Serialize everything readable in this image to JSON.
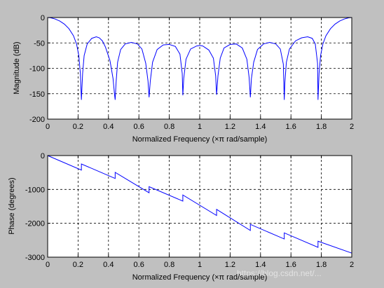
{
  "colors": {
    "figure_background": "#c0c0c0",
    "axes_background": "#ffffff",
    "line": "#0000ff",
    "grid": "#000000"
  },
  "watermark": "https://blog.csdn.net/...",
  "chart_data": [
    {
      "type": "line",
      "name": "magnitude",
      "xlabel": "Normalized Frequency  (×π rad/sample)",
      "ylabel": "Magnitude (dB)",
      "xlim": [
        0,
        2
      ],
      "ylim": [
        -200,
        0
      ],
      "xticks": [
        0,
        0.2,
        0.4,
        0.6,
        0.8,
        1,
        1.2,
        1.4,
        1.6,
        1.8,
        2
      ],
      "yticks": [
        -200,
        -150,
        -100,
        -50,
        0
      ],
      "grid": true,
      "series": [
        {
          "x": [
            0,
            0.02,
            0.05,
            0.08,
            0.11,
            0.14,
            0.17,
            0.19,
            0.205,
            0.215,
            0.222,
            0.23,
            0.24,
            0.26,
            0.29,
            0.32,
            0.34,
            0.36,
            0.38,
            0.41,
            0.43,
            0.44,
            0.444,
            0.45,
            0.46,
            0.48,
            0.51,
            0.55,
            0.59,
            0.62,
            0.645,
            0.66,
            0.667,
            0.675,
            0.69,
            0.72,
            0.76,
            0.8,
            0.84,
            0.87,
            0.885,
            0.889,
            0.895,
            0.91,
            0.94,
            0.98,
            1.0,
            1.02,
            1.06,
            1.09,
            1.105,
            1.111,
            1.12,
            1.135,
            1.16,
            1.2,
            1.24,
            1.28,
            1.31,
            1.325,
            1.333,
            1.34,
            1.355,
            1.38,
            1.42,
            1.46,
            1.5,
            1.53,
            1.55,
            1.556,
            1.56,
            1.57,
            1.59,
            1.63,
            1.67,
            1.71,
            1.74,
            1.76,
            1.775,
            1.778,
            1.785,
            1.795,
            1.81,
            1.83,
            1.86,
            1.89,
            1.92,
            1.95,
            1.98,
            2.0
          ],
          "y": [
            0,
            -0.5,
            -3,
            -7,
            -13,
            -22,
            -36,
            -52,
            -75,
            -110,
            -162,
            -110,
            -75,
            -52,
            -41,
            -38,
            -40,
            -46,
            -58,
            -85,
            -120,
            -152,
            -162,
            -128,
            -88,
            -63,
            -52,
            -49,
            -52,
            -62,
            -90,
            -125,
            -157,
            -125,
            -88,
            -63,
            -54,
            -53,
            -57,
            -72,
            -110,
            -153,
            -120,
            -82,
            -62,
            -56,
            -55,
            -56,
            -64,
            -80,
            -115,
            -152,
            -115,
            -80,
            -60,
            -53,
            -52,
            -60,
            -82,
            -118,
            -157,
            -120,
            -88,
            -63,
            -52,
            -49,
            -52,
            -62,
            -92,
            -162,
            -128,
            -88,
            -62,
            -46,
            -40,
            -38,
            -41,
            -52,
            -90,
            -162,
            -110,
            -75,
            -52,
            -36,
            -22,
            -13,
            -7,
            -3,
            -0.5,
            0
          ]
        }
      ]
    },
    {
      "type": "line",
      "name": "phase",
      "xlabel": "Normalized Frequency  (×π rad/sample)",
      "ylabel": "Phase (degrees)",
      "xlim": [
        0,
        2
      ],
      "ylim": [
        -3000,
        0
      ],
      "xticks": [
        0,
        0.2,
        0.4,
        0.6,
        0.8,
        1,
        1.2,
        1.4,
        1.6,
        1.8,
        2
      ],
      "yticks": [
        -3000,
        -2000,
        -1000,
        0
      ],
      "grid": true,
      "series": [
        {
          "x": [
            0,
            0.222,
            0.222,
            0.444,
            0.444,
            0.667,
            0.667,
            0.889,
            0.889,
            1.111,
            1.111,
            1.333,
            1.333,
            1.556,
            1.556,
            1.778,
            1.778,
            2.0
          ],
          "y": [
            0,
            -428,
            -248,
            -676,
            -496,
            -1098,
            -918,
            -1344,
            -1164,
            -1769,
            -1589,
            -2212,
            -2032,
            -2463,
            -2283,
            -2709,
            -2529,
            -2880
          ]
        }
      ]
    }
  ]
}
